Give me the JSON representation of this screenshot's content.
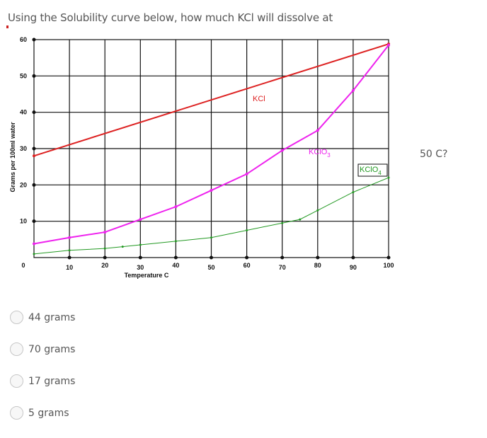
{
  "question": {
    "text": "Using the Solubility curve below, how much KCl will dissolve at",
    "tail": "50 C?"
  },
  "chart_data": {
    "type": "line",
    "xlabel": "Temperature C",
    "ylabel": "Grams  per 100ml water",
    "xlim": [
      0,
      100
    ],
    "ylim": [
      0,
      60
    ],
    "x_ticks": [
      "0",
      "10",
      "20",
      "30",
      "40",
      "50",
      "60",
      "70",
      "80",
      "90",
      "100"
    ],
    "y_ticks": [
      "10",
      "20",
      "30",
      "40",
      "50",
      "60"
    ],
    "grid": true,
    "series": [
      {
        "name": "KCl",
        "color": "#dd2222",
        "x": [
          0,
          100
        ],
        "y": [
          28,
          58.8
        ]
      },
      {
        "name": "KClO3",
        "color": "#ee22ee",
        "x": [
          0,
          10,
          20,
          30,
          40,
          50,
          60,
          70,
          80,
          90,
          100
        ],
        "y": [
          3.8,
          5.5,
          7,
          10.5,
          14,
          18.5,
          23,
          29.5,
          35,
          46,
          58.5
        ]
      },
      {
        "name": "KClO4",
        "color": "#229922",
        "x": [
          0,
          10,
          20,
          25,
          30,
          40,
          50,
          60,
          70,
          75,
          80,
          90,
          100
        ],
        "y": [
          1,
          2,
          2.5,
          3,
          3.5,
          4.5,
          5.5,
          7.5,
          9.5,
          10.5,
          13,
          18,
          22
        ]
      }
    ]
  },
  "options": [
    {
      "label": "44 grams"
    },
    {
      "label": "70 grams"
    },
    {
      "label": "17 grams"
    },
    {
      "label": "5 grams"
    }
  ]
}
